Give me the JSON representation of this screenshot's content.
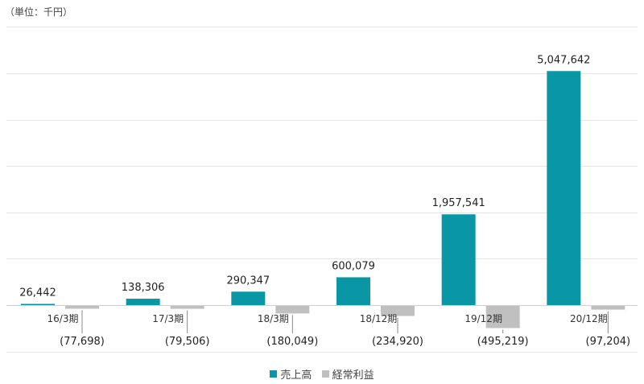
{
  "unit_label": "（単位：千円）",
  "chart_data": {
    "type": "bar",
    "categories": [
      "16/3期",
      "17/3期",
      "18/3期",
      "18/12期",
      "19/12期",
      "20/12期"
    ],
    "series": [
      {
        "name": "売上高",
        "color": "#0a97a5",
        "values": [
          26442,
          138306,
          290347,
          600079,
          1957541,
          5047642
        ],
        "labels": [
          "26,442",
          "138,306",
          "290,347",
          "600,079",
          "1,957,541",
          "5,047,642"
        ]
      },
      {
        "name": "経常利益",
        "color": "#c0c0c0",
        "values": [
          -77698,
          -79506,
          -180049,
          -234920,
          -495219,
          -97204
        ],
        "labels": [
          "(77,698)",
          "(79,506)",
          "(180,049)",
          "(234,920)",
          "(495,219)",
          "(97,204)"
        ]
      }
    ],
    "ylim": [
      -1000000,
      6000000
    ],
    "gridlines": [
      6000000,
      5000000,
      4000000,
      3000000,
      2000000,
      1000000,
      -1000000
    ],
    "grid": true,
    "legend_position": "bottom-center"
  }
}
